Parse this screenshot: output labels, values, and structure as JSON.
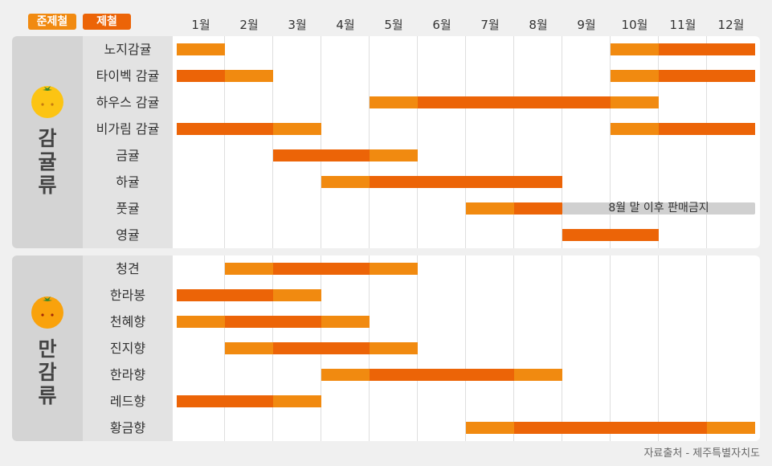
{
  "legend": [
    {
      "label": "준제철",
      "color": "#f18a10"
    },
    {
      "label": "제철",
      "color": "#ec6407"
    }
  ],
  "colors": {
    "semi": "#f18a10",
    "peak": "#ec6407",
    "note": "#d0d0d0"
  },
  "source": "자료출처 - 제주특별자치도",
  "chart_data": {
    "type": "gantt",
    "months": [
      "1월",
      "2월",
      "3월",
      "4월",
      "5월",
      "6월",
      "7월",
      "8월",
      "9월",
      "10월",
      "11월",
      "12월"
    ],
    "groups": [
      {
        "name": "감귤류",
        "icon": "orange-icon",
        "items": [
          {
            "name": "노지감귤",
            "segments": [
              {
                "start": 1,
                "end": 1,
                "type": "semi"
              },
              {
                "start": 10,
                "end": 10,
                "type": "semi"
              },
              {
                "start": 11,
                "end": 12,
                "type": "peak"
              }
            ]
          },
          {
            "name": "타이벡 감귤",
            "segments": [
              {
                "start": 1,
                "end": 1,
                "type": "peak"
              },
              {
                "start": 2,
                "end": 2,
                "type": "semi"
              },
              {
                "start": 10,
                "end": 10,
                "type": "semi"
              },
              {
                "start": 11,
                "end": 12,
                "type": "peak"
              }
            ]
          },
          {
            "name": "하우스 감귤",
            "segments": [
              {
                "start": 5,
                "end": 5,
                "type": "semi"
              },
              {
                "start": 6,
                "end": 9,
                "type": "peak"
              },
              {
                "start": 10,
                "end": 10,
                "type": "semi"
              }
            ]
          },
          {
            "name": "비가림 감귤",
            "segments": [
              {
                "start": 1,
                "end": 2,
                "type": "peak"
              },
              {
                "start": 3,
                "end": 3,
                "type": "semi"
              },
              {
                "start": 10,
                "end": 10,
                "type": "semi"
              },
              {
                "start": 11,
                "end": 12,
                "type": "peak"
              }
            ]
          },
          {
            "name": "금귤",
            "segments": [
              {
                "start": 3,
                "end": 4,
                "type": "peak"
              },
              {
                "start": 5,
                "end": 5,
                "type": "semi"
              }
            ]
          },
          {
            "name": "하귤",
            "segments": [
              {
                "start": 4,
                "end": 4,
                "type": "semi"
              },
              {
                "start": 5,
                "end": 8,
                "type": "peak"
              }
            ]
          },
          {
            "name": "풋귤",
            "segments": [
              {
                "start": 7,
                "end": 7,
                "type": "semi"
              },
              {
                "start": 8,
                "end": 8,
                "type": "peak"
              }
            ],
            "note": {
              "start": 9,
              "end": 12,
              "text": "8월 말 이후 판매금지"
            }
          },
          {
            "name": "영귤",
            "segments": [
              {
                "start": 9,
                "end": 10,
                "type": "peak"
              }
            ]
          }
        ]
      },
      {
        "name": "만감류",
        "icon": "orange-icon",
        "items": [
          {
            "name": "청견",
            "segments": [
              {
                "start": 2,
                "end": 2,
                "type": "semi"
              },
              {
                "start": 3,
                "end": 4,
                "type": "peak"
              },
              {
                "start": 5,
                "end": 5,
                "type": "semi"
              }
            ]
          },
          {
            "name": "한라봉",
            "segments": [
              {
                "start": 1,
                "end": 2,
                "type": "peak"
              },
              {
                "start": 3,
                "end": 3,
                "type": "semi"
              }
            ]
          },
          {
            "name": "천혜향",
            "segments": [
              {
                "start": 1,
                "end": 1,
                "type": "semi"
              },
              {
                "start": 2,
                "end": 3,
                "type": "peak"
              },
              {
                "start": 4,
                "end": 4,
                "type": "semi"
              }
            ]
          },
          {
            "name": "진지향",
            "segments": [
              {
                "start": 2,
                "end": 2,
                "type": "semi"
              },
              {
                "start": 3,
                "end": 4,
                "type": "peak"
              },
              {
                "start": 5,
                "end": 5,
                "type": "semi"
              }
            ]
          },
          {
            "name": "한라향",
            "segments": [
              {
                "start": 4,
                "end": 4,
                "type": "semi"
              },
              {
                "start": 5,
                "end": 7,
                "type": "peak"
              },
              {
                "start": 8,
                "end": 8,
                "type": "semi"
              }
            ]
          },
          {
            "name": "레드향",
            "segments": [
              {
                "start": 1,
                "end": 2,
                "type": "peak"
              },
              {
                "start": 3,
                "end": 3,
                "type": "semi"
              }
            ]
          },
          {
            "name": "황금향",
            "segments": [
              {
                "start": 7,
                "end": 7,
                "type": "semi"
              },
              {
                "start": 8,
                "end": 11,
                "type": "peak"
              },
              {
                "start": 12,
                "end": 12,
                "type": "semi"
              }
            ]
          }
        ]
      }
    ]
  }
}
